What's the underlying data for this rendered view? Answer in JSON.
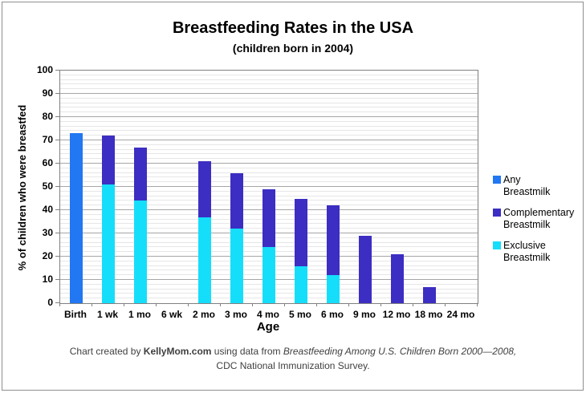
{
  "chart_data": {
    "type": "bar",
    "stacked": true,
    "title": "Breastfeeding Rates in the USA",
    "subtitle": "(children born in 2004)",
    "xlabel": "Age",
    "ylabel": "% of children who were breastfed",
    "ylim": [
      0,
      100
    ],
    "y_tick_step": 10,
    "minor_grid_step": 2,
    "grid": true,
    "legend_position": "right",
    "categories": [
      "Birth",
      "1 wk",
      "1 mo",
      "6 wk",
      "2 mo",
      "3 mo",
      "4 mo",
      "5 mo",
      "6 mo",
      "9 mo",
      "12 mo",
      "18 mo",
      "24 mo"
    ],
    "series": [
      {
        "name": "Any Breastmilk",
        "color": "#2277f2",
        "values": [
          73,
          null,
          null,
          null,
          null,
          null,
          null,
          null,
          null,
          null,
          null,
          null,
          null
        ]
      },
      {
        "name": "Complementary Breastmilk",
        "color": "#3c2ec3",
        "values": [
          null,
          21,
          23,
          null,
          24,
          24,
          25,
          29,
          30,
          29,
          21,
          7,
          null
        ]
      },
      {
        "name": "Exclusive Breastmilk",
        "color": "#15defb",
        "values": [
          null,
          51,
          44,
          null,
          37,
          32,
          24,
          16,
          12,
          null,
          null,
          null,
          null
        ]
      }
    ],
    "total_any_breastmilk_by_age": [
      73,
      72,
      67,
      null,
      61,
      56,
      49,
      45,
      42,
      29,
      21,
      7,
      0
    ]
  },
  "legend": {
    "items": [
      {
        "label_line1": "Any",
        "label_line2": "Breastmilk",
        "color": "#2277f2"
      },
      {
        "label_line1": "Complementary",
        "label_line2": "Breastmilk",
        "color": "#3c2ec3"
      },
      {
        "label_line1": "Exclusive",
        "label_line2": "Breastmilk",
        "color": "#15defb"
      }
    ]
  },
  "footer": {
    "prefix": "Chart created by ",
    "site": "KellyMom.com",
    "middle": " using data from ",
    "source": "Breastfeeding Among U.S. Children Born 2000—2008,",
    "line2": "CDC National Immunization Survey."
  }
}
